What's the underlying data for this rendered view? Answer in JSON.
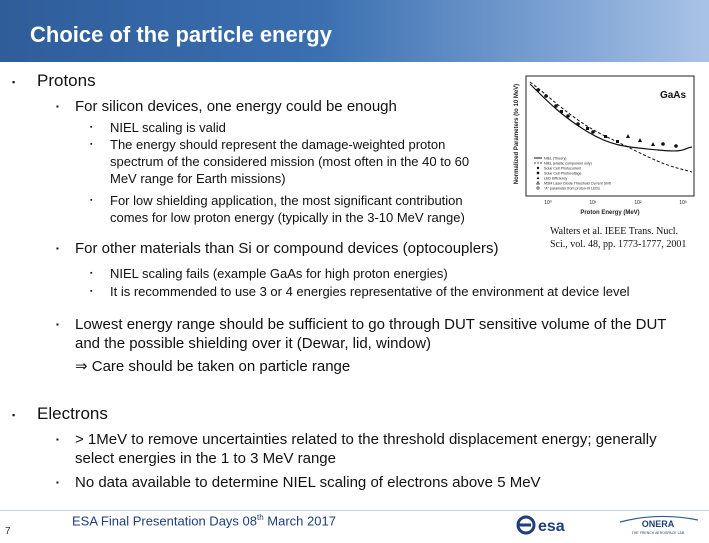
{
  "header": {
    "title": "Choice of the particle energy"
  },
  "body": {
    "protons": "Protons",
    "silicon": "For silicon devices, one energy could be enough",
    "silicon_points": [
      "NIEL scaling is valid",
      "The energy should represent the damage-weighted proton",
      "spectrum of the considered mission (most often in the 40 to 60",
      "MeV range for Earth missions)",
      "For low shielding application, the most significant contribution",
      "comes for low proton energy (typically in the 3-10 MeV range)"
    ],
    "other": "For other materials than Si or compound devices (optocouplers)",
    "other_points": [
      "NIEL scaling fails (example GaAs for high proton energies)",
      "It is recommended to use 3 or 4 energies representative of the environment at device level"
    ],
    "lowest_1": "Lowest energy range should be sufficient to go through DUT sensitive volume of the DUT",
    "lowest_2": "and the possible shielding over it (Dewar, lid, window)",
    "lowest_3": "⇒ Care should be taken on particle range",
    "electrons": "Electrons",
    "electron_points_1a": "> 1MeV to remove uncertainties related to the threshold displacement energy; generally",
    "electron_points_1b": "select energies in the 1 to 3 MeV range",
    "electron_points_2": "No data available to determine NIEL scaling of electrons above 5 MeV"
  },
  "figure": {
    "label": "GaAs",
    "ylabel": "Normalized Parameters (to 10 MeV)",
    "xlabel": "Proton Energy (MeV)",
    "legend": [
      "NIEL (Theory)",
      "NIEL (elastic component only)",
      "Solar Cell Photocurrent",
      "Solar Cell Photovoltage",
      "LED Efficiency",
      "MSM Laser Diode Threshold Current Shift",
      "\"A\" parameter from proton-irr LEDs"
    ],
    "ticks": [
      "10⁰",
      "10¹",
      "10²",
      "10³"
    ],
    "caption_1": "Walters et al. IEEE Trans. Nucl.",
    "caption_2": "Sci., vol. 48, pp. 1773-1777, 2001"
  },
  "footer": {
    "text_a": "ESA Final Presentation Days 08",
    "text_sup": "th",
    "text_b": " March 2017",
    "page": "7",
    "esa": "esa",
    "onera": "ONERA",
    "onera_sub": "THE FRENCH AEROSPACE LAB"
  },
  "colors": {
    "header": "#3a6fb0",
    "accent": "#1f3e7a"
  }
}
